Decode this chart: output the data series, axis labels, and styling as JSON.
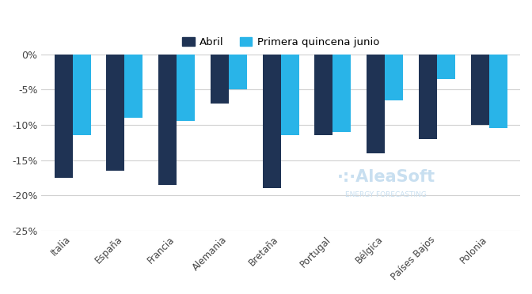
{
  "categories": [
    "Italia",
    "España",
    "Francia",
    "Alemania",
    "Bretaña",
    "Portugal",
    "Bélgica",
    "Países Bajos",
    "Polonia"
  ],
  "abril": [
    -17.5,
    -16.5,
    -18.5,
    -7.0,
    -19.0,
    -11.5,
    -14.0,
    -12.0,
    -10.0
  ],
  "junio": [
    -11.5,
    -9.0,
    -9.5,
    -5.0,
    -11.5,
    -11.0,
    -6.5,
    -3.5,
    -10.5
  ],
  "color_abril": "#1f3354",
  "color_junio": "#29b4e8",
  "legend_abril": "Abril",
  "legend_junio": "Primera quincena junio",
  "ylim": [
    -25,
    0.5
  ],
  "yticks": [
    0,
    -5,
    -10,
    -15,
    -20,
    -25
  ],
  "ytick_labels": [
    "0%",
    "-5%",
    "-10%",
    "-15%",
    "-20%",
    "-25%"
  ],
  "background_color": "#ffffff",
  "grid_color": "#d0d0d0",
  "bar_width": 0.35,
  "watermark_line1": "·:·AleaSoft",
  "watermark_line2": "ENERGY FORECASTING",
  "watermark_color": "#c8dff0"
}
